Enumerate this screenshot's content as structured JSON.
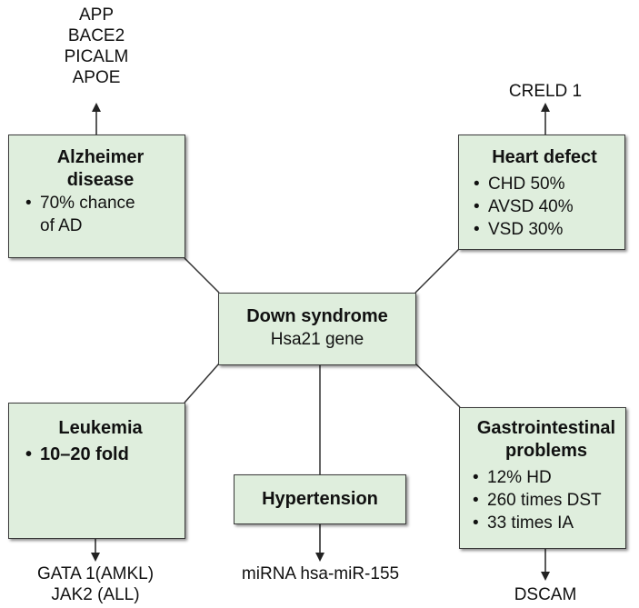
{
  "center": {
    "title": "Down syndrome",
    "subtitle": "Hsa21 gene"
  },
  "alzheimer": {
    "title_line1": "Alzheimer",
    "title_line2": "disease",
    "bullet_line1": "70% chance",
    "bullet_line2": "of AD",
    "genes": [
      "APP",
      "BACE2",
      "PICALM",
      "APOE"
    ]
  },
  "heart": {
    "title": "Heart defect",
    "bullets": [
      "CHD 50%",
      "AVSD 40%",
      "VSD 30%"
    ],
    "genes": [
      "CRELD 1"
    ]
  },
  "leukemia": {
    "title": "Leukemia",
    "bullets": [
      "10–20 fold"
    ],
    "genes": [
      "GATA 1(AMKL)",
      "JAK2 (ALL)"
    ]
  },
  "hypertension": {
    "title": "Hypertension",
    "genes": [
      "miRNA hsa-miR-155"
    ]
  },
  "gastro": {
    "title_line1": "Gastrointestinal",
    "title_line2": "problems",
    "bullets": [
      "12% HD",
      "260 times DST",
      "33 times IA"
    ],
    "genes": [
      "DSCAM"
    ]
  }
}
